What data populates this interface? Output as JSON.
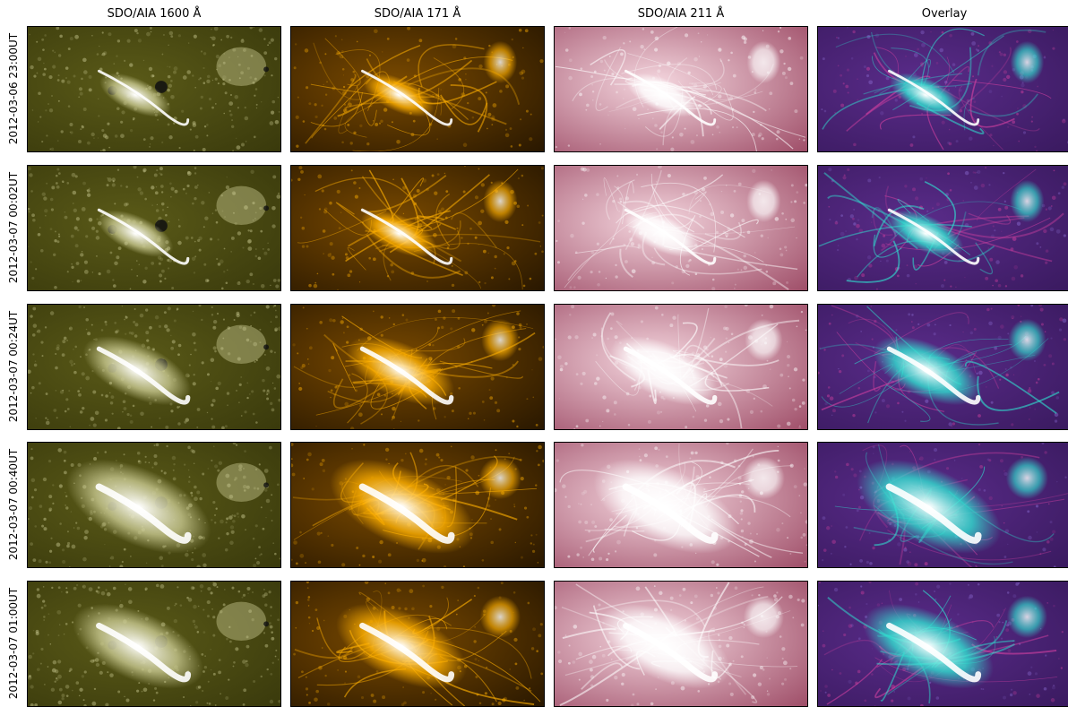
{
  "columns": [
    {
      "title": "SDO/AIA 1600 Å",
      "palette": "aia1600"
    },
    {
      "title": "SDO/AIA 171 Å",
      "palette": "aia171"
    },
    {
      "title": "SDO/AIA 211 Å",
      "palette": "aia211"
    },
    {
      "title": "Overlay",
      "palette": "overlay"
    }
  ],
  "rows": [
    {
      "label": "2012-03-06 23:00UT",
      "flare_level": 0.15
    },
    {
      "label": "2012-03-07 00:02UT",
      "flare_level": 0.2
    },
    {
      "label": "2012-03-07 00:24UT",
      "flare_level": 0.55
    },
    {
      "label": "2012-03-07 00:40UT",
      "flare_level": 0.95
    },
    {
      "label": "2012-03-07 01:00UT",
      "flare_level": 0.8
    }
  ],
  "colors": {
    "aia1600_base": "#5a5a18",
    "aia1600_light": "#c8c890",
    "aia171_base": "#7a4a00",
    "aia171_light": "#ffb000",
    "aia211_base": "#a0506a",
    "aia211_light": "#f4d6de",
    "overlay_base": "#5a2c8a",
    "overlay_cyan": "#30e0d0",
    "overlay_magenta": "#d040a0"
  }
}
